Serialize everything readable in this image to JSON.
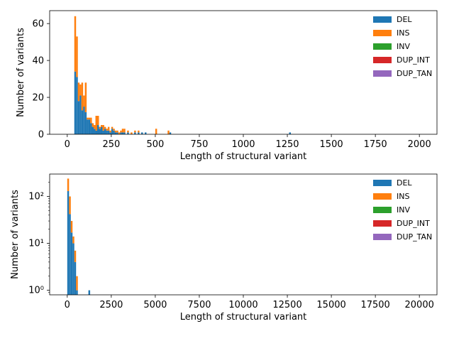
{
  "chart_data": [
    {
      "type": "bar",
      "stacked": true,
      "xlabel": "Length of structural variant",
      "ylabel": "Number of variants",
      "xlim": [
        -100,
        2100
      ],
      "ylim": [
        0,
        67
      ],
      "xticks": [
        0,
        250,
        500,
        750,
        1000,
        1250,
        1500,
        1750,
        2000
      ],
      "xtick_labels": [
        "0",
        "250",
        "500",
        "750",
        "1000",
        "1250",
        "1500",
        "1750",
        "2000"
      ],
      "yticks": [
        0,
        20,
        40,
        60
      ],
      "ytick_labels": [
        "0",
        "20",
        "40",
        "60"
      ],
      "legend": "top-right",
      "series": [
        {
          "name": "DEL",
          "color": "#1f77b4",
          "bars": [
            [
              40,
              34
            ],
            [
              50,
              31
            ],
            [
              60,
              18
            ],
            [
              70,
              21
            ],
            [
              80,
              13
            ],
            [
              90,
              15
            ],
            [
              100,
              12
            ],
            [
              110,
              8
            ],
            [
              120,
              8
            ],
            [
              130,
              6
            ],
            [
              140,
              4
            ],
            [
              150,
              3
            ],
            [
              160,
              2
            ],
            [
              170,
              5
            ],
            [
              180,
              3
            ],
            [
              190,
              4
            ],
            [
              200,
              2
            ],
            [
              210,
              3
            ],
            [
              220,
              2
            ],
            [
              230,
              2
            ],
            [
              240,
              1
            ],
            [
              250,
              3
            ],
            [
              260,
              2
            ],
            [
              270,
              1
            ],
            [
              280,
              1
            ],
            [
              300,
              1
            ],
            [
              310,
              1
            ],
            [
              320,
              1
            ],
            [
              340,
              1
            ],
            [
              380,
              1
            ],
            [
              400,
              1
            ],
            [
              420,
              1
            ],
            [
              440,
              1
            ],
            [
              580,
              1
            ],
            [
              1260,
              1
            ]
          ]
        },
        {
          "name": "INS",
          "color": "#ff7f0e",
          "bars": [
            [
              40,
              30
            ],
            [
              50,
              22
            ],
            [
              60,
              10
            ],
            [
              70,
              6
            ],
            [
              80,
              15
            ],
            [
              90,
              6
            ],
            [
              100,
              16
            ],
            [
              110,
              1
            ],
            [
              120,
              1
            ],
            [
              130,
              3
            ],
            [
              140,
              2
            ],
            [
              150,
              2
            ],
            [
              160,
              8
            ],
            [
              170,
              5
            ],
            [
              180,
              1
            ],
            [
              190,
              1
            ],
            [
              200,
              3
            ],
            [
              210,
              1
            ],
            [
              220,
              1
            ],
            [
              230,
              2
            ],
            [
              240,
              1
            ],
            [
              250,
              1
            ],
            [
              260,
              1
            ],
            [
              270,
              1
            ],
            [
              280,
              1
            ],
            [
              290,
              1
            ],
            [
              300,
              1
            ],
            [
              310,
              2
            ],
            [
              320,
              2
            ],
            [
              340,
              1
            ],
            [
              360,
              1
            ],
            [
              380,
              1
            ],
            [
              400,
              1
            ],
            [
              500,
              3
            ],
            [
              570,
              2
            ]
          ]
        },
        {
          "name": "INV",
          "color": "#2ca02c",
          "bars": []
        },
        {
          "name": "DUP_INT",
          "color": "#d62728",
          "bars": []
        },
        {
          "name": "DUP_TAN",
          "color": "#9467bd",
          "bars": []
        }
      ]
    },
    {
      "type": "bar",
      "stacked": true,
      "yscale": "log",
      "xlabel": "Length of structural variant",
      "ylabel": "Number of variants",
      "xlim": [
        -1000,
        21000
      ],
      "ylim": [
        0.8,
        300
      ],
      "xticks": [
        0,
        2500,
        5000,
        7500,
        10000,
        12500,
        15000,
        17500,
        20000
      ],
      "xtick_labels": [
        "0",
        "2500",
        "5000",
        "7500",
        "10000",
        "12500",
        "15000",
        "17500",
        "20000"
      ],
      "yticks": [
        1,
        10,
        100
      ],
      "ytick_labels": [
        "10⁰",
        "10¹",
        "10²"
      ],
      "legend": "top-right",
      "series": [
        {
          "name": "DEL",
          "color": "#1f77b4",
          "bars": [
            [
              0,
              130
            ],
            [
              100,
              42
            ],
            [
              200,
              17
            ],
            [
              300,
              10
            ],
            [
              400,
              4
            ],
            [
              500,
              1
            ],
            [
              1200,
              1
            ]
          ]
        },
        {
          "name": "INS",
          "color": "#ff7f0e",
          "bars": [
            [
              0,
              110
            ],
            [
              100,
              58
            ],
            [
              200,
              13
            ],
            [
              300,
              4
            ],
            [
              400,
              3
            ],
            [
              500,
              1
            ]
          ]
        },
        {
          "name": "INV",
          "color": "#2ca02c",
          "bars": []
        },
        {
          "name": "DUP_INT",
          "color": "#d62728",
          "bars": []
        },
        {
          "name": "DUP_TAN",
          "color": "#9467bd",
          "bars": []
        }
      ]
    }
  ]
}
